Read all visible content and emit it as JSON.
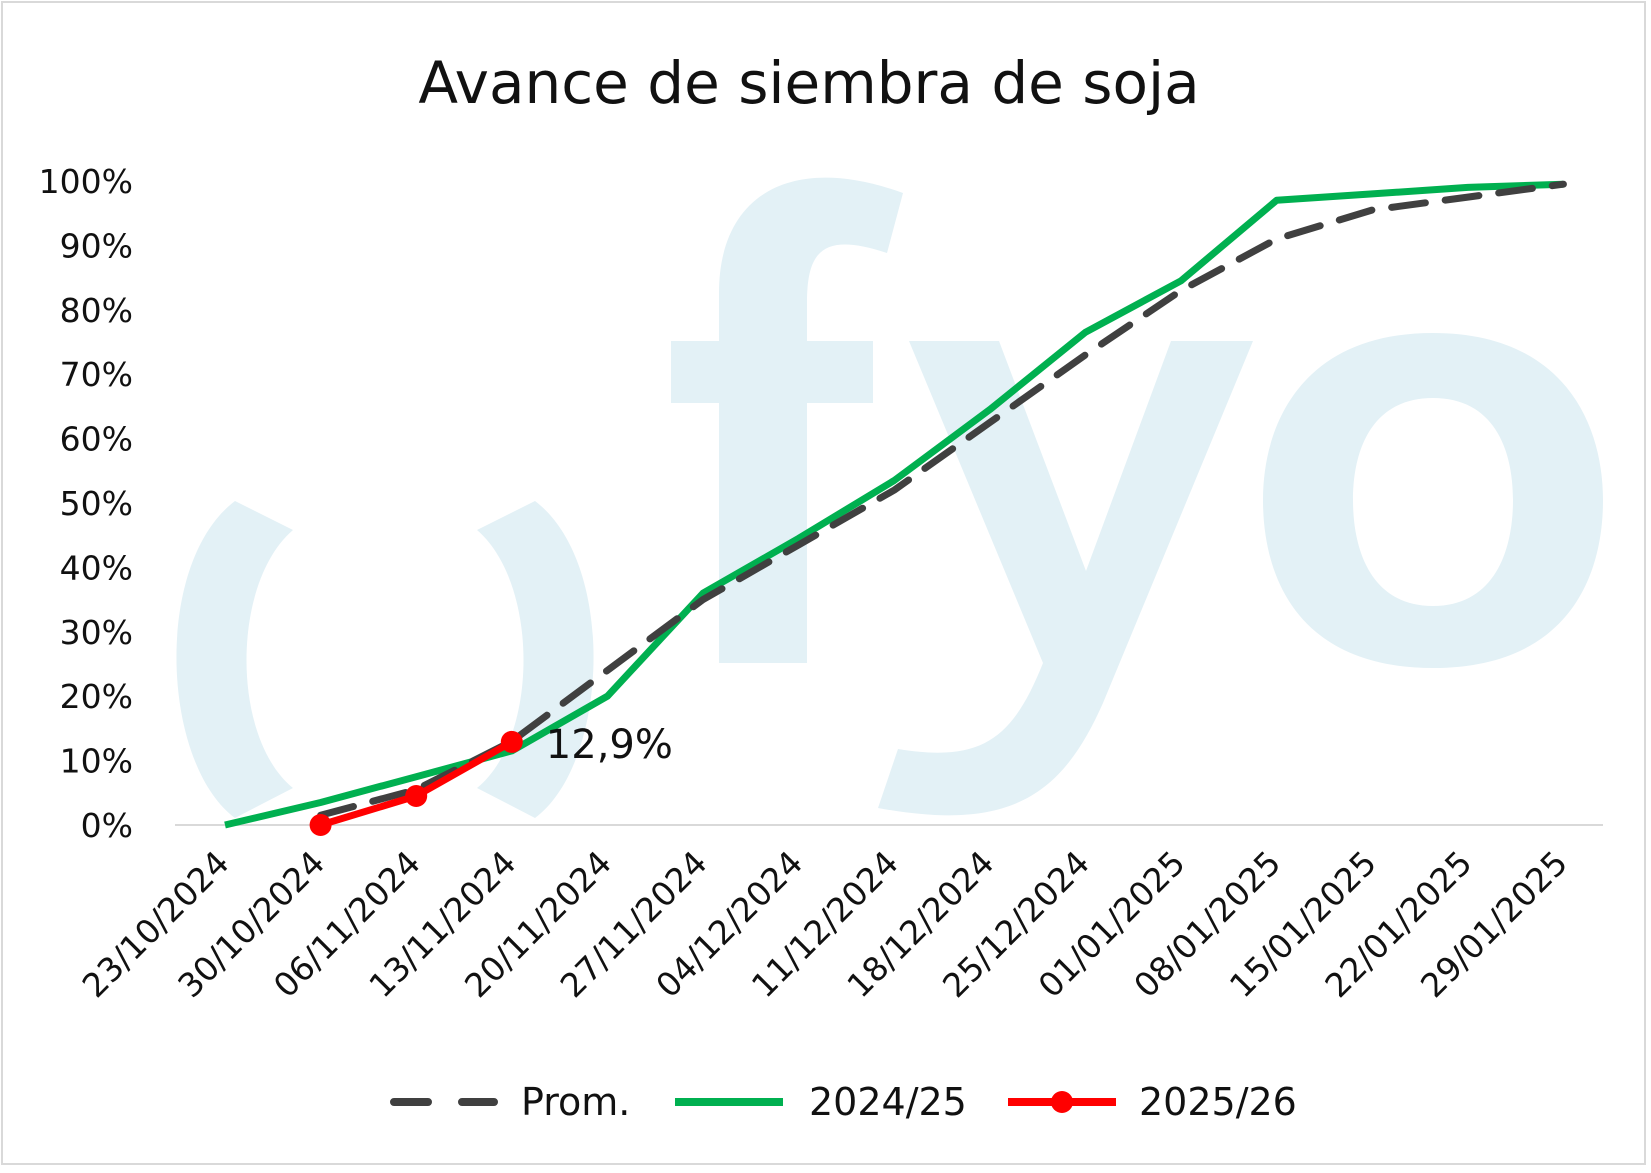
{
  "chart_data": {
    "type": "line",
    "title": "Avance de siembra de soja",
    "categories": [
      "23/10/2024",
      "30/10/2024",
      "06/11/2024",
      "13/11/2024",
      "20/11/2024",
      "27/11/2024",
      "04/12/2024",
      "11/12/2024",
      "18/12/2024",
      "25/12/2024",
      "01/01/2025",
      "08/01/2025",
      "15/01/2025",
      "22/01/2025",
      "29/01/2025"
    ],
    "yticks": [
      "0%",
      "10%",
      "20%",
      "30%",
      "40%",
      "50%",
      "60%",
      "70%",
      "80%",
      "90%",
      "100%"
    ],
    "ylim": [
      0,
      100
    ],
    "grid": false,
    "legend_position": "bottom",
    "watermark": "fyo",
    "series": [
      {
        "name": "Prom.",
        "style": "dashed",
        "color": "#404040",
        "values": [
          null,
          1.5,
          5.5,
          13,
          24,
          35,
          43.5,
          52,
          62.5,
          73,
          83,
          91,
          95.5,
          97.5,
          99.5
        ]
      },
      {
        "name": "2024/25",
        "style": "solid",
        "color": "#00b050",
        "values": [
          0,
          3.5,
          7.5,
          11.5,
          20,
          36,
          44.5,
          53.5,
          64.5,
          76.5,
          84.5,
          97,
          98,
          99,
          99.5
        ]
      },
      {
        "name": "2025/26",
        "style": "solid-markers",
        "color": "#ff0000",
        "values": [
          null,
          0,
          4.5,
          12.9,
          null,
          null,
          null,
          null,
          null,
          null,
          null,
          null,
          null,
          null,
          null
        ]
      }
    ],
    "annotations": [
      {
        "series": "2025/26",
        "category": "13/11/2024",
        "label": "12,9%"
      }
    ]
  }
}
